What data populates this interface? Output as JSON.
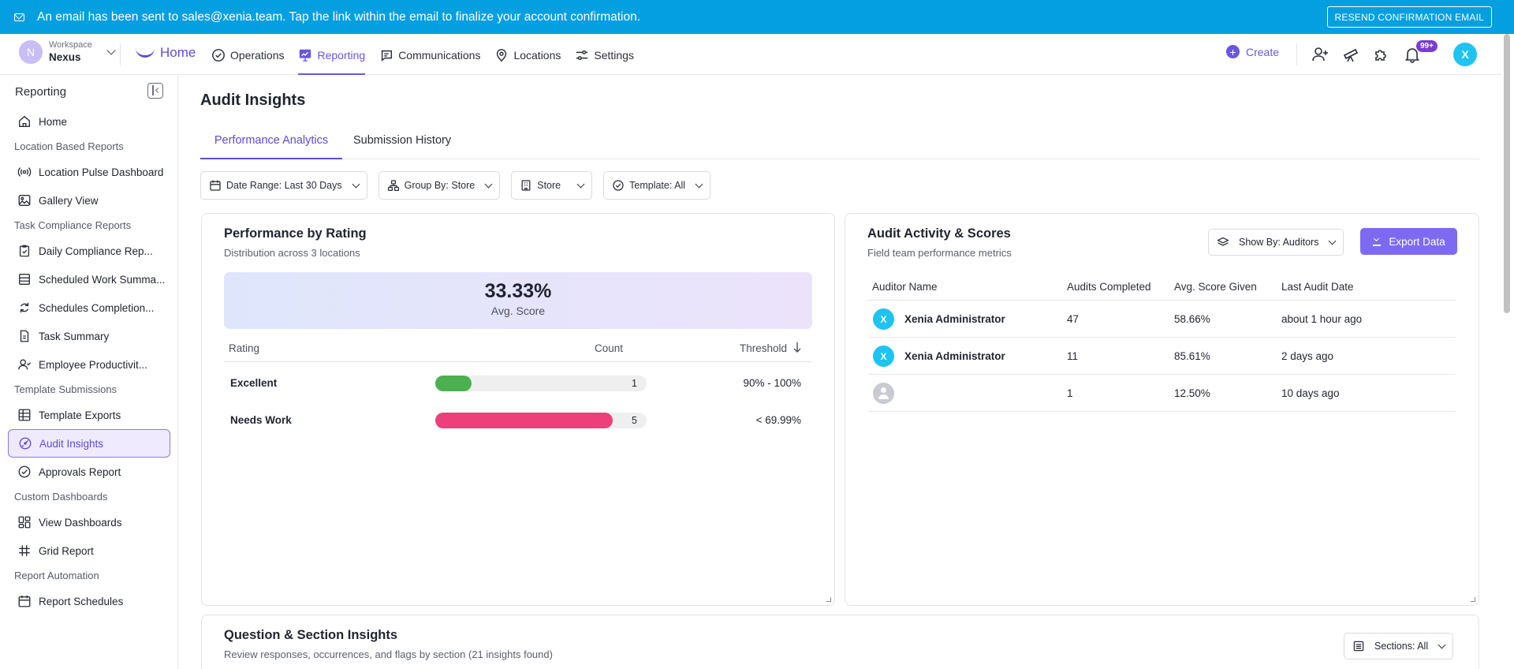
{
  "banner": {
    "message": "An email has been sent to sales@xenia.team. Tap the link within the email to finalize your account confirmation.",
    "button": "RESEND CONFIRMATION EMAIL"
  },
  "workspace": {
    "initial": "N",
    "label": "Workspace",
    "name": "Nexus"
  },
  "nav": {
    "home": "Home",
    "items": [
      "Operations",
      "Reporting",
      "Communications",
      "Locations",
      "Settings"
    ],
    "create": "Create",
    "notifications_badge": "99+",
    "user_initial": "X"
  },
  "sidebar": {
    "title": "Reporting",
    "home": "Home",
    "sections": [
      {
        "title": "Location Based Reports",
        "items": [
          "Location Pulse Dashboard",
          "Gallery View"
        ]
      },
      {
        "title": "Task Compliance Reports",
        "items": [
          "Daily Compliance Rep...",
          "Scheduled Work Summa...",
          "Schedules Completion...",
          "Task Summary",
          "Employee Productivit..."
        ]
      },
      {
        "title": "Template Submissions",
        "items": [
          "Template Exports",
          "Audit Insights",
          "Approvals Report"
        ]
      },
      {
        "title": "Custom Dashboards",
        "items": [
          "View Dashboards",
          "Grid Report"
        ]
      },
      {
        "title": "Report Automation",
        "items": [
          "Report Schedules"
        ]
      }
    ]
  },
  "page": {
    "title": "Audit Insights",
    "tabs": [
      "Performance Analytics",
      "Submission History"
    ]
  },
  "filters": {
    "date_range": "Date Range: Last 30 Days",
    "group_by": "Group By:  Store",
    "store": "Store",
    "template": "Template: All"
  },
  "performance": {
    "title": "Performance by Rating",
    "subtitle": "Distribution across 3 locations",
    "avg_score": "33.33%",
    "avg_label": "Avg. Score",
    "headers": {
      "rating": "Rating",
      "count": "Count",
      "threshold": "Threshold"
    },
    "rows": [
      {
        "rating": "Excellent",
        "count": 1,
        "fill_fraction": 0.17,
        "color": "#4caf50",
        "threshold": "90% - 100%"
      },
      {
        "rating": "Needs Work",
        "count": 5,
        "fill_fraction": 0.84,
        "color": "#ec407a",
        "threshold": "< 69.99%"
      }
    ]
  },
  "activity": {
    "title": "Audit Activity & Scores",
    "subtitle": "Field team performance metrics",
    "show_by": "Show By:  Auditors",
    "export": "Export Data",
    "headers": [
      "Auditor Name",
      "Audits Completed",
      "Avg. Score Given",
      "Last Audit Date"
    ],
    "rows": [
      {
        "initial": "X",
        "name": "Xenia Administrator",
        "audits": "47",
        "avg": "58.66%",
        "last": "about 1 hour ago"
      },
      {
        "initial": "X",
        "name": "Xenia Administrator",
        "audits": "11",
        "avg": "85.61%",
        "last": "2 days ago"
      },
      {
        "initial": "",
        "name": "",
        "audits": "1",
        "avg": "12.50%",
        "last": "10 days ago"
      }
    ]
  },
  "insights": {
    "title": "Question & Section Insights",
    "subtitle": "Review responses, occurrences, and flags by section (21 insights found)",
    "sections_filter": "Sections: All"
  }
}
